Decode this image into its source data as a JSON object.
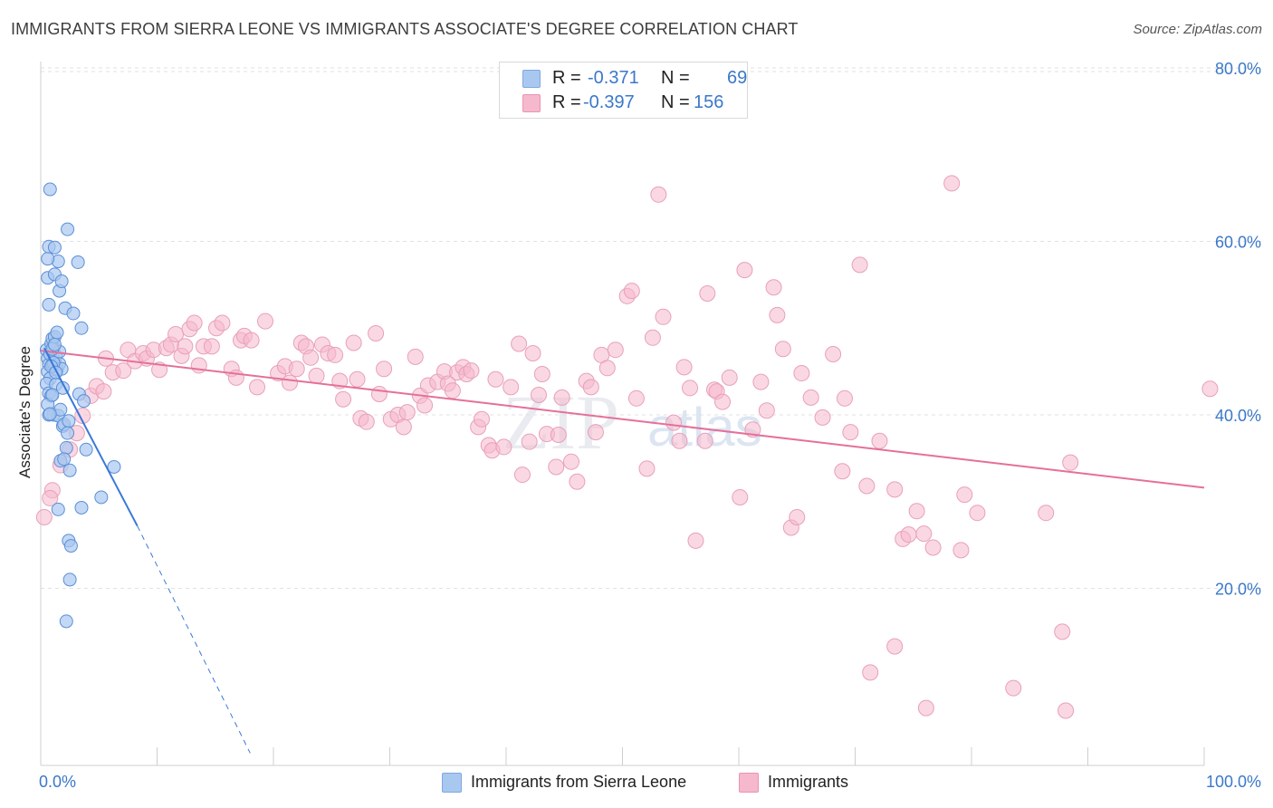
{
  "header": {
    "title": "IMMIGRANTS FROM SIERRA LEONE VS IMMIGRANTS ASSOCIATE'S DEGREE CORRELATION CHART",
    "source": "Source: ZipAtlas.com"
  },
  "watermark": "ZIPatlas",
  "legend": {
    "rows": [
      {
        "r_label": "R =",
        "r_value": "-0.371",
        "n_label": "N =",
        "n_value": "69",
        "color": "#a9c8f0"
      },
      {
        "r_label": "R =",
        "r_value": "-0.397",
        "n_label": "N =",
        "n_value": "156",
        "color": "#f6b8cc"
      }
    ]
  },
  "bottom_legend": {
    "items": [
      {
        "label": "Immigrants from Sierra Leone",
        "color": "#a9c8f0"
      },
      {
        "label": "Immigrants",
        "color": "#f6b8cc"
      }
    ]
  },
  "chart_data": {
    "type": "scatter",
    "title": "IMMIGRANTS FROM SIERRA LEONE VS IMMIGRANTS ASSOCIATE'S DEGREE CORRELATION CHART",
    "xlabel": "",
    "ylabel": "Associate's Degree",
    "xlim": [
      0,
      100
    ],
    "ylim": [
      0,
      80
    ],
    "x_tick_labels": [
      "0.0%",
      "100.0%"
    ],
    "y_tick_labels": [
      "20.0%",
      "40.0%",
      "60.0%",
      "80.0%"
    ],
    "y_ticks": [
      20,
      40,
      60,
      80
    ],
    "grid": true,
    "legend_position": "top-center",
    "series": [
      {
        "name": "Immigrants from Sierra Leone",
        "color": "#3a78d8",
        "fill": "#a9c8f0",
        "trend": {
          "x": [
            0.3,
            8.3
          ],
          "y": [
            47.7,
            27.2
          ],
          "dashed_to": [
            18.0,
            1.0
          ]
        },
        "points": [
          [
            0.5,
            47.5
          ],
          [
            0.6,
            46.5
          ],
          [
            0.7,
            45.8
          ],
          [
            0.8,
            47.0
          ],
          [
            0.9,
            48.2
          ],
          [
            1.0,
            48.8
          ],
          [
            1.1,
            47.8
          ],
          [
            1.2,
            46.2
          ],
          [
            0.6,
            45.0
          ],
          [
            0.8,
            44.2
          ],
          [
            1.0,
            45.8
          ],
          [
            1.3,
            46.8
          ],
          [
            1.4,
            45.2
          ],
          [
            1.6,
            45.9
          ],
          [
            0.5,
            43.6
          ],
          [
            0.7,
            42.5
          ],
          [
            0.9,
            42.2
          ],
          [
            1.1,
            40.0
          ],
          [
            1.3,
            43.5
          ],
          [
            1.5,
            39.9
          ],
          [
            1.7,
            40.6
          ],
          [
            1.9,
            38.7
          ],
          [
            2.0,
            38.9
          ],
          [
            2.2,
            36.2
          ],
          [
            2.4,
            39.3
          ],
          [
            0.6,
            41.2
          ],
          [
            0.7,
            40.0
          ],
          [
            0.8,
            40.1
          ],
          [
            1.0,
            42.3
          ],
          [
            1.2,
            49.0
          ],
          [
            1.4,
            49.5
          ],
          [
            1.6,
            47.3
          ],
          [
            1.8,
            45.3
          ],
          [
            1.9,
            43.1
          ],
          [
            2.1,
            52.3
          ],
          [
            2.3,
            37.9
          ],
          [
            2.5,
            33.6
          ],
          [
            1.7,
            34.7
          ],
          [
            2.0,
            34.9
          ],
          [
            0.7,
            52.7
          ],
          [
            0.6,
            55.8
          ],
          [
            1.2,
            56.2
          ],
          [
            1.6,
            54.3
          ],
          [
            1.8,
            55.4
          ],
          [
            1.5,
            57.7
          ],
          [
            0.6,
            58.0
          ],
          [
            0.7,
            59.4
          ],
          [
            1.2,
            59.3
          ],
          [
            2.3,
            61.4
          ],
          [
            3.2,
            57.6
          ],
          [
            0.8,
            66.0
          ],
          [
            3.5,
            50.0
          ],
          [
            2.8,
            51.7
          ],
          [
            3.3,
            42.4
          ],
          [
            3.7,
            41.6
          ],
          [
            3.9,
            36.0
          ],
          [
            6.3,
            34.0
          ],
          [
            5.2,
            30.5
          ],
          [
            3.5,
            29.3
          ],
          [
            1.5,
            29.1
          ],
          [
            2.4,
            25.5
          ],
          [
            2.6,
            24.9
          ],
          [
            2.5,
            21.0
          ],
          [
            2.2,
            16.2
          ],
          [
            1.0,
            47.6
          ],
          [
            1.1,
            46.0
          ],
          [
            0.9,
            45.6
          ],
          [
            1.3,
            44.9
          ],
          [
            1.2,
            48.1
          ]
        ]
      },
      {
        "name": "Immigrants",
        "color": "#e5709a",
        "fill": "#f6b8cc",
        "trend": {
          "x": [
            0.0,
            100.0
          ],
          "y": [
            47.4,
            31.6
          ]
        },
        "points": [
          [
            0.3,
            28.2
          ],
          [
            1.0,
            31.3
          ],
          [
            0.8,
            30.4
          ],
          [
            1.7,
            34.2
          ],
          [
            2.5,
            36.0
          ],
          [
            3.1,
            37.9
          ],
          [
            3.6,
            39.9
          ],
          [
            4.3,
            42.2
          ],
          [
            4.8,
            43.3
          ],
          [
            5.4,
            42.7
          ],
          [
            5.6,
            46.5
          ],
          [
            6.2,
            44.9
          ],
          [
            7.1,
            45.1
          ],
          [
            7.5,
            47.5
          ],
          [
            8.1,
            46.2
          ],
          [
            8.8,
            47.1
          ],
          [
            9.1,
            46.5
          ],
          [
            9.7,
            47.5
          ],
          [
            10.2,
            45.2
          ],
          [
            10.8,
            47.7
          ],
          [
            11.2,
            48.1
          ],
          [
            11.6,
            49.3
          ],
          [
            12.1,
            46.8
          ],
          [
            12.4,
            47.9
          ],
          [
            12.8,
            49.9
          ],
          [
            13.2,
            50.6
          ],
          [
            13.6,
            45.7
          ],
          [
            14.0,
            47.9
          ],
          [
            14.7,
            47.9
          ],
          [
            15.1,
            50.0
          ],
          [
            15.6,
            50.6
          ],
          [
            16.4,
            45.3
          ],
          [
            16.8,
            44.3
          ],
          [
            17.2,
            48.6
          ],
          [
            17.5,
            49.1
          ],
          [
            18.1,
            48.6
          ],
          [
            18.6,
            43.2
          ],
          [
            19.3,
            50.8
          ],
          [
            20.4,
            44.8
          ],
          [
            21.0,
            45.6
          ],
          [
            21.4,
            43.7
          ],
          [
            22.0,
            45.3
          ],
          [
            22.4,
            48.3
          ],
          [
            22.8,
            47.9
          ],
          [
            23.2,
            46.6
          ],
          [
            23.7,
            44.5
          ],
          [
            24.2,
            48.1
          ],
          [
            24.7,
            47.1
          ],
          [
            25.3,
            46.9
          ],
          [
            25.7,
            43.9
          ],
          [
            26.0,
            41.8
          ],
          [
            26.9,
            48.3
          ],
          [
            27.2,
            44.1
          ],
          [
            27.5,
            39.6
          ],
          [
            28.0,
            39.2
          ],
          [
            28.8,
            49.4
          ],
          [
            29.1,
            42.4
          ],
          [
            29.5,
            45.3
          ],
          [
            30.1,
            39.5
          ],
          [
            30.7,
            40.0
          ],
          [
            31.2,
            38.6
          ],
          [
            31.5,
            40.3
          ],
          [
            32.2,
            46.7
          ],
          [
            32.6,
            42.2
          ],
          [
            33.0,
            41.1
          ],
          [
            33.3,
            43.4
          ],
          [
            34.1,
            43.8
          ],
          [
            34.7,
            45.0
          ],
          [
            35.0,
            43.6
          ],
          [
            35.4,
            42.8
          ],
          [
            35.8,
            44.9
          ],
          [
            36.3,
            45.5
          ],
          [
            36.6,
            44.7
          ],
          [
            37.0,
            45.1
          ],
          [
            37.6,
            38.6
          ],
          [
            37.9,
            39.5
          ],
          [
            38.5,
            36.5
          ],
          [
            38.8,
            35.9
          ],
          [
            39.1,
            44.1
          ],
          [
            39.8,
            36.3
          ],
          [
            40.4,
            43.2
          ],
          [
            41.1,
            48.2
          ],
          [
            41.4,
            33.1
          ],
          [
            42.0,
            36.9
          ],
          [
            42.3,
            47.1
          ],
          [
            42.8,
            42.3
          ],
          [
            43.1,
            44.7
          ],
          [
            43.5,
            37.8
          ],
          [
            44.3,
            34.0
          ],
          [
            44.5,
            37.7
          ],
          [
            44.8,
            42.0
          ],
          [
            45.6,
            34.6
          ],
          [
            46.1,
            32.3
          ],
          [
            46.9,
            43.9
          ],
          [
            47.3,
            43.2
          ],
          [
            47.7,
            38.0
          ],
          [
            48.2,
            46.9
          ],
          [
            48.7,
            45.4
          ],
          [
            49.4,
            47.5
          ],
          [
            50.4,
            53.7
          ],
          [
            50.8,
            54.3
          ],
          [
            51.2,
            41.9
          ],
          [
            52.1,
            33.8
          ],
          [
            52.6,
            48.9
          ],
          [
            53.1,
            65.4
          ],
          [
            53.5,
            51.3
          ],
          [
            54.4,
            39.1
          ],
          [
            54.9,
            37.0
          ],
          [
            55.3,
            45.5
          ],
          [
            55.8,
            43.1
          ],
          [
            56.3,
            25.5
          ],
          [
            57.1,
            37.0
          ],
          [
            57.3,
            54.0
          ],
          [
            57.9,
            42.9
          ],
          [
            58.1,
            42.7
          ],
          [
            58.6,
            41.5
          ],
          [
            59.2,
            44.3
          ],
          [
            60.1,
            30.5
          ],
          [
            60.5,
            56.7
          ],
          [
            61.2,
            38.3
          ],
          [
            61.9,
            43.8
          ],
          [
            62.4,
            40.5
          ],
          [
            63.0,
            54.7
          ],
          [
            63.3,
            51.5
          ],
          [
            63.8,
            47.6
          ],
          [
            64.5,
            27.0
          ],
          [
            65.0,
            28.2
          ],
          [
            65.4,
            44.8
          ],
          [
            66.2,
            42.0
          ],
          [
            67.2,
            39.7
          ],
          [
            68.1,
            47.0
          ],
          [
            68.9,
            33.5
          ],
          [
            69.6,
            38.0
          ],
          [
            70.4,
            57.3
          ],
          [
            71.0,
            31.8
          ],
          [
            72.1,
            37.0
          ],
          [
            73.4,
            31.4
          ],
          [
            74.1,
            25.7
          ],
          [
            74.6,
            26.2
          ],
          [
            75.3,
            28.9
          ],
          [
            75.9,
            26.3
          ],
          [
            76.7,
            24.7
          ],
          [
            79.1,
            24.4
          ],
          [
            80.5,
            28.7
          ],
          [
            78.3,
            66.7
          ],
          [
            69.1,
            41.9
          ],
          [
            86.4,
            28.7
          ],
          [
            88.5,
            34.5
          ],
          [
            87.8,
            15.0
          ],
          [
            88.1,
            5.9
          ],
          [
            83.6,
            8.5
          ],
          [
            76.1,
            6.2
          ],
          [
            73.4,
            13.3
          ],
          [
            71.3,
            10.3
          ],
          [
            100.5,
            43.0
          ],
          [
            79.4,
            30.8
          ]
        ]
      }
    ]
  }
}
